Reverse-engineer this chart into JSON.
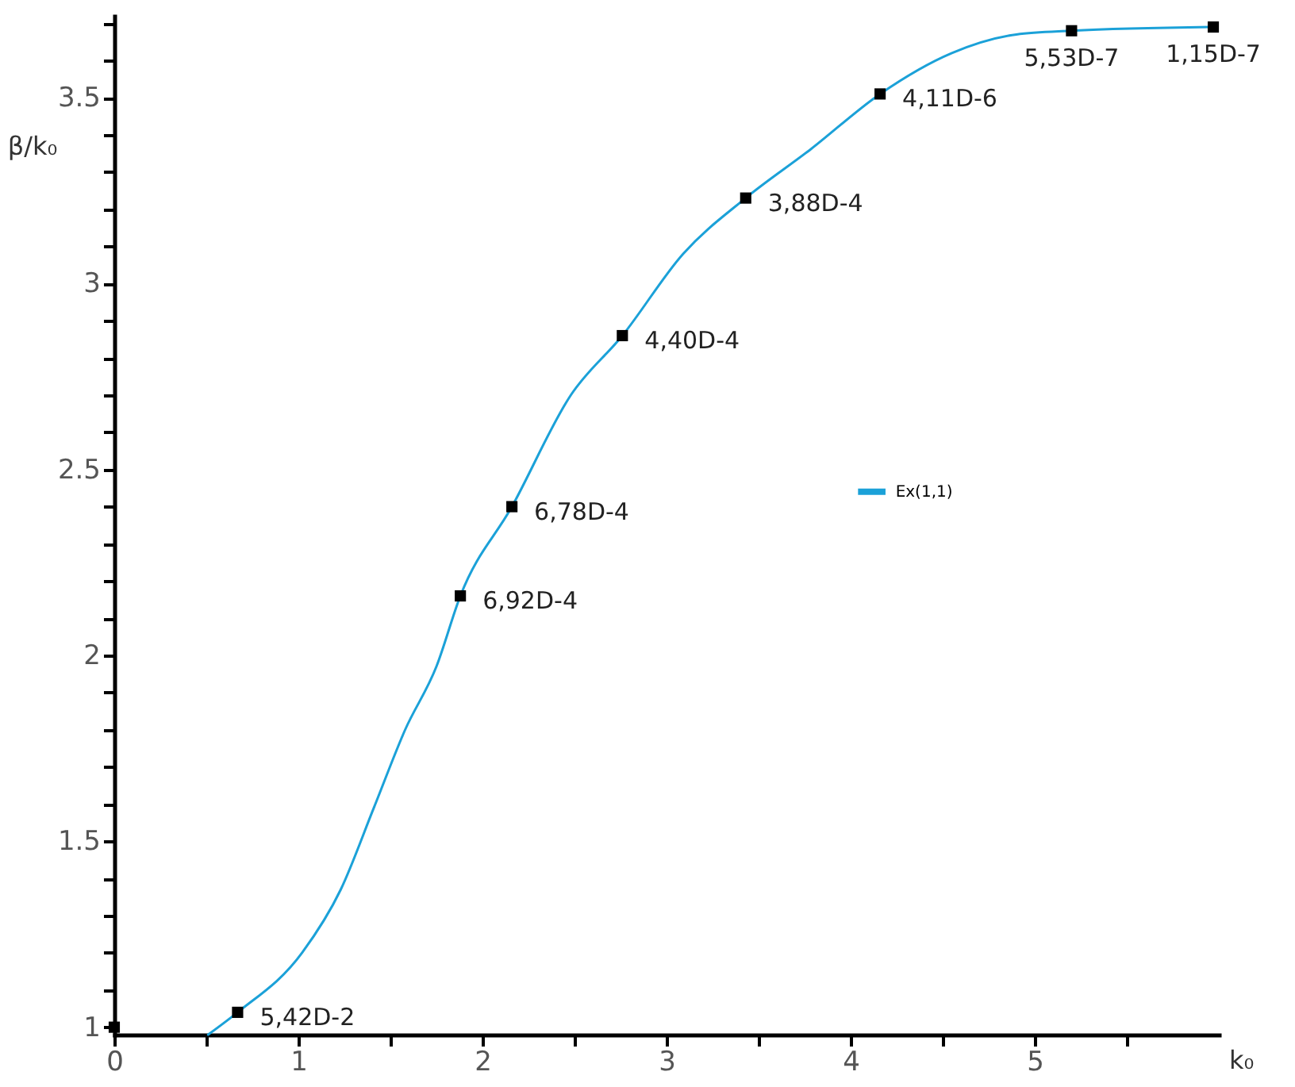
{
  "chart_data": {
    "type": "line",
    "xlabel": "k₀",
    "ylabel": "β/k₀",
    "xlim": [
      0,
      6
    ],
    "ylim": [
      0.98,
      3.72
    ],
    "xticks": [
      0,
      {
        "value": 0.5,
        "label": null
      },
      1,
      {
        "value": 1.5,
        "label": null
      },
      2,
      {
        "value": 2.5,
        "label": null
      },
      3,
      {
        "value": 3.5,
        "label": null
      },
      4,
      {
        "value": 4.5,
        "label": null
      },
      5,
      {
        "value": 5.5,
        "label": null
      }
    ],
    "yticks": [
      1,
      {
        "value": 1.1,
        "label": null
      },
      {
        "value": 1.2,
        "label": null
      },
      {
        "value": 1.3,
        "label": null
      },
      {
        "value": 1.4,
        "label": null
      },
      1.5,
      {
        "value": 1.6,
        "label": null
      },
      {
        "value": 1.7,
        "label": null
      },
      {
        "value": 1.8,
        "label": null
      },
      {
        "value": 1.9,
        "label": null
      },
      2,
      {
        "value": 2.1,
        "label": null
      },
      {
        "value": 2.2,
        "label": null
      },
      {
        "value": 2.3,
        "label": null
      },
      {
        "value": 2.4,
        "label": null
      },
      2.5,
      {
        "value": 2.6,
        "label": null
      },
      {
        "value": 2.7,
        "label": null
      },
      {
        "value": 2.8,
        "label": null
      },
      {
        "value": 2.9,
        "label": null
      },
      3,
      {
        "value": 3.1,
        "label": null
      },
      {
        "value": 3.2,
        "label": null
      },
      {
        "value": 3.3,
        "label": null
      },
      {
        "value": 3.4,
        "label": null
      },
      3.5,
      {
        "value": 3.6,
        "label": null
      },
      {
        "value": 3.7,
        "label": null
      }
    ],
    "grid": false,
    "legend": "right",
    "series": [
      {
        "name": "Ex(1,1)",
        "color": "#1ba1d8",
        "marker": "none",
        "x": [
          0.51,
          0.67,
          1.02,
          1.23,
          1.41,
          1.58,
          1.75,
          1.88,
          2.16,
          2.48,
          2.76,
          3.09,
          3.43,
          3.78,
          4.16,
          4.55,
          4.9,
          5.2,
          5.97
        ],
        "values": [
          0.98,
          1.04,
          1.2,
          1.37,
          1.59,
          1.8,
          1.97,
          2.16,
          2.4,
          2.7,
          2.86,
          3.08,
          3.23,
          3.36,
          3.51,
          3.62,
          3.67,
          3.68,
          3.69
        ]
      },
      {
        "type": "scatter",
        "color": "#000000",
        "marker": "square",
        "x": [
          0,
          0.67,
          1.88,
          2.16,
          2.76,
          3.43,
          4.16,
          5.2,
          5.97
        ],
        "values": [
          1,
          1.04,
          2.16,
          2.4,
          2.86,
          3.23,
          3.51,
          3.68,
          3.69
        ]
      }
    ],
    "annotations": [
      {
        "text": "5,42D-2",
        "x": 0.67,
        "y": 1.04
      },
      {
        "text": "6,92D-4",
        "x": 1.88,
        "y": 2.16
      },
      {
        "text": "6,78D-4",
        "x": 2.16,
        "y": 2.4
      },
      {
        "text": "4,40D-4",
        "x": 2.76,
        "y": 2.86
      },
      {
        "text": "3,88D-4",
        "x": 3.43,
        "y": 3.23
      },
      {
        "text": "4,11D-6",
        "x": 4.16,
        "y": 3.51
      },
      {
        "text": "5,53D-7",
        "x": 5.2,
        "y": 3.68
      },
      {
        "text": "1,15D-7",
        "x": 5.97,
        "y": 3.69
      }
    ]
  }
}
